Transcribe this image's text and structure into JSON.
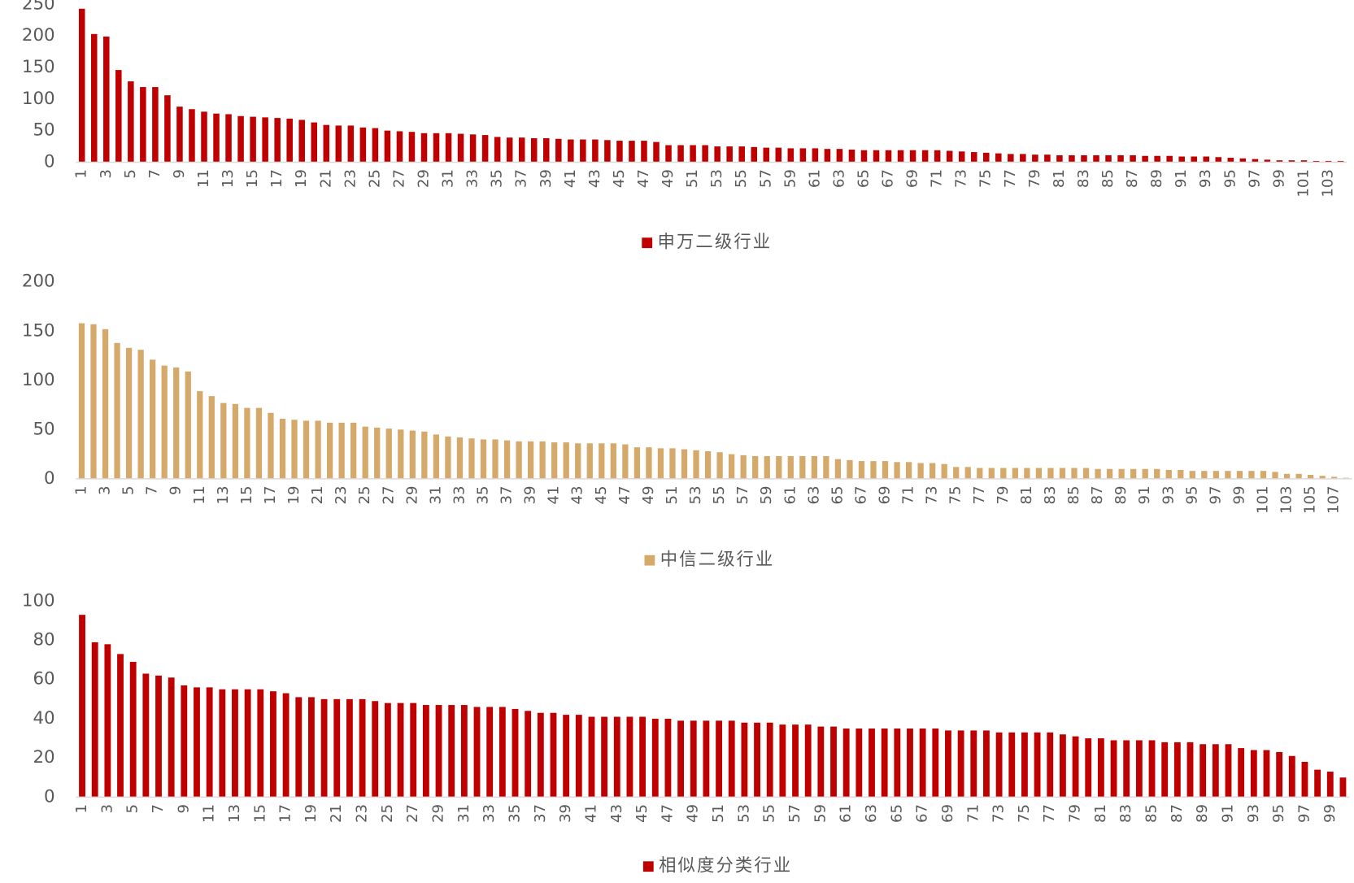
{
  "chart_data": [
    {
      "type": "bar",
      "categories": [
        "1",
        null,
        "3",
        null,
        "5",
        null,
        "7",
        null,
        "9",
        null,
        "11",
        null,
        "13",
        null,
        "15",
        null,
        "17",
        null,
        "19",
        null,
        "21",
        null,
        "23",
        null,
        "25",
        null,
        "27",
        null,
        "29",
        null,
        "31",
        null,
        "33",
        null,
        "35",
        null,
        "37",
        null,
        "39",
        null,
        "41",
        null,
        "43",
        null,
        "45",
        null,
        "47",
        null,
        "49",
        null,
        "51",
        null,
        "53",
        null,
        "55",
        null,
        "57",
        null,
        "59",
        null,
        "61",
        null,
        "63",
        null,
        "65",
        null,
        "67",
        null,
        "69",
        null,
        "71",
        null,
        "73",
        null,
        "75",
        null,
        "77",
        null,
        "79",
        null,
        "81",
        null,
        "83",
        null,
        "85",
        null,
        "87",
        null,
        "89",
        null,
        "91",
        null,
        "93",
        null,
        "95",
        null,
        "97",
        null,
        "99",
        null,
        "101",
        null,
        "103",
        null
      ],
      "series": [
        {
          "name": "申万二级行业",
          "color": "#c00000",
          "values": [
            243,
            203,
            199,
            146,
            128,
            119,
            119,
            106,
            88,
            84,
            80,
            77,
            76,
            73,
            72,
            71,
            70,
            69,
            67,
            63,
            59,
            58,
            58,
            55,
            54,
            50,
            49,
            48,
            46,
            46,
            46,
            45,
            44,
            43,
            40,
            39,
            39,
            38,
            38,
            37,
            36,
            36,
            36,
            35,
            34,
            34,
            34,
            32,
            27,
            27,
            27,
            27,
            25,
            25,
            25,
            24,
            23,
            23,
            22,
            22,
            22,
            21,
            21,
            20,
            19,
            19,
            19,
            19,
            19,
            19,
            19,
            18,
            17,
            16,
            15,
            14,
            13,
            13,
            12,
            12,
            11,
            11,
            11,
            11,
            11,
            11,
            11,
            10,
            10,
            10,
            9,
            9,
            9,
            8,
            7,
            6,
            5,
            4,
            3,
            3,
            3,
            2,
            2,
            2
          ]
        }
      ],
      "ylim": [
        0,
        250
      ],
      "yticks": [
        0,
        50,
        100,
        150,
        200,
        250
      ],
      "grid": false,
      "legend": "bottom"
    },
    {
      "type": "bar",
      "categories": [
        "1",
        null,
        "3",
        null,
        "5",
        null,
        "7",
        null,
        "9",
        null,
        "11",
        null,
        "13",
        null,
        "15",
        null,
        "17",
        null,
        "19",
        null,
        "21",
        null,
        "23",
        null,
        "25",
        null,
        "27",
        null,
        "29",
        null,
        "31",
        null,
        "33",
        null,
        "35",
        null,
        "37",
        null,
        "39",
        null,
        "41",
        null,
        "43",
        null,
        "45",
        null,
        "47",
        null,
        "49",
        null,
        "51",
        null,
        "53",
        null,
        "55",
        null,
        "57",
        null,
        "59",
        null,
        "61",
        null,
        "63",
        null,
        "65",
        null,
        "67",
        null,
        "69",
        null,
        "71",
        null,
        "73",
        null,
        "75",
        null,
        "77",
        null,
        "79",
        null,
        "81",
        null,
        "83",
        null,
        "85",
        null,
        "87",
        null,
        "89",
        null,
        "91",
        null,
        "93",
        null,
        "95",
        null,
        "97",
        null,
        "99",
        null,
        "101",
        null,
        "103",
        null,
        "105",
        null,
        "107",
        null
      ],
      "series": [
        {
          "name": "中信二级行业",
          "color": "#d4a96a",
          "values": [
            158,
            157,
            152,
            138,
            133,
            131,
            121,
            115,
            113,
            109,
            89,
            84,
            77,
            76,
            72,
            72,
            67,
            61,
            60,
            59,
            59,
            57,
            57,
            57,
            53,
            52,
            51,
            50,
            49,
            48,
            45,
            43,
            42,
            41,
            40,
            40,
            39,
            38,
            38,
            38,
            37,
            37,
            36,
            36,
            36,
            36,
            35,
            32,
            32,
            31,
            31,
            30,
            29,
            28,
            27,
            25,
            24,
            23,
            23,
            23,
            23,
            23,
            23,
            23,
            20,
            19,
            18,
            18,
            18,
            17,
            17,
            16,
            16,
            15,
            12,
            12,
            11,
            11,
            11,
            11,
            11,
            11,
            11,
            11,
            11,
            11,
            10,
            10,
            10,
            10,
            10,
            10,
            9,
            9,
            8,
            8,
            8,
            8,
            8,
            8,
            8,
            7,
            5,
            5,
            4,
            3,
            2,
            1
          ]
        }
      ],
      "ylim": [
        0,
        200
      ],
      "yticks": [
        0,
        50,
        100,
        150,
        200
      ],
      "grid": false,
      "legend": "bottom"
    },
    {
      "type": "bar",
      "categories": [
        "1",
        null,
        "3",
        null,
        "5",
        null,
        "7",
        null,
        "9",
        null,
        "11",
        null,
        "13",
        null,
        "15",
        null,
        "17",
        null,
        "19",
        null,
        "21",
        null,
        "23",
        null,
        "25",
        null,
        "27",
        null,
        "29",
        null,
        "31",
        null,
        "33",
        null,
        "35",
        null,
        "37",
        null,
        "39",
        null,
        "41",
        null,
        "43",
        null,
        "45",
        null,
        "47",
        null,
        "49",
        null,
        "51",
        null,
        "53",
        null,
        "55",
        null,
        "57",
        null,
        "59",
        null,
        "61",
        null,
        "63",
        null,
        "65",
        null,
        "67",
        null,
        "69",
        null,
        "71",
        null,
        "73",
        null,
        "75",
        null,
        "77",
        null,
        "79",
        null,
        "81",
        null,
        "83",
        null,
        "85",
        null,
        "87",
        null,
        "89",
        null,
        "91",
        null,
        "93",
        null,
        "95",
        null,
        "97",
        null,
        "99",
        null
      ],
      "series": [
        {
          "name": "相似度分类行业",
          "color": "#c00000",
          "values": [
            93,
            79,
            78,
            73,
            69,
            63,
            62,
            61,
            57,
            56,
            56,
            55,
            55,
            55,
            55,
            54,
            53,
            51,
            51,
            50,
            50,
            50,
            50,
            49,
            48,
            48,
            48,
            47,
            47,
            47,
            47,
            46,
            46,
            46,
            45,
            44,
            43,
            43,
            42,
            42,
            41,
            41,
            41,
            41,
            41,
            40,
            40,
            39,
            39,
            39,
            39,
            39,
            38,
            38,
            38,
            37,
            37,
            37,
            36,
            36,
            35,
            35,
            35,
            35,
            35,
            35,
            35,
            35,
            34,
            34,
            34,
            34,
            33,
            33,
            33,
            33,
            33,
            32,
            31,
            30,
            30,
            29,
            29,
            29,
            29,
            28,
            28,
            28,
            27,
            27,
            27,
            25,
            24,
            24,
            23,
            21,
            18,
            14,
            13,
            10
          ]
        }
      ],
      "ylim": [
        0,
        100
      ],
      "yticks": [
        0,
        20,
        40,
        60,
        80,
        100
      ],
      "grid": false,
      "legend": "bottom"
    }
  ]
}
